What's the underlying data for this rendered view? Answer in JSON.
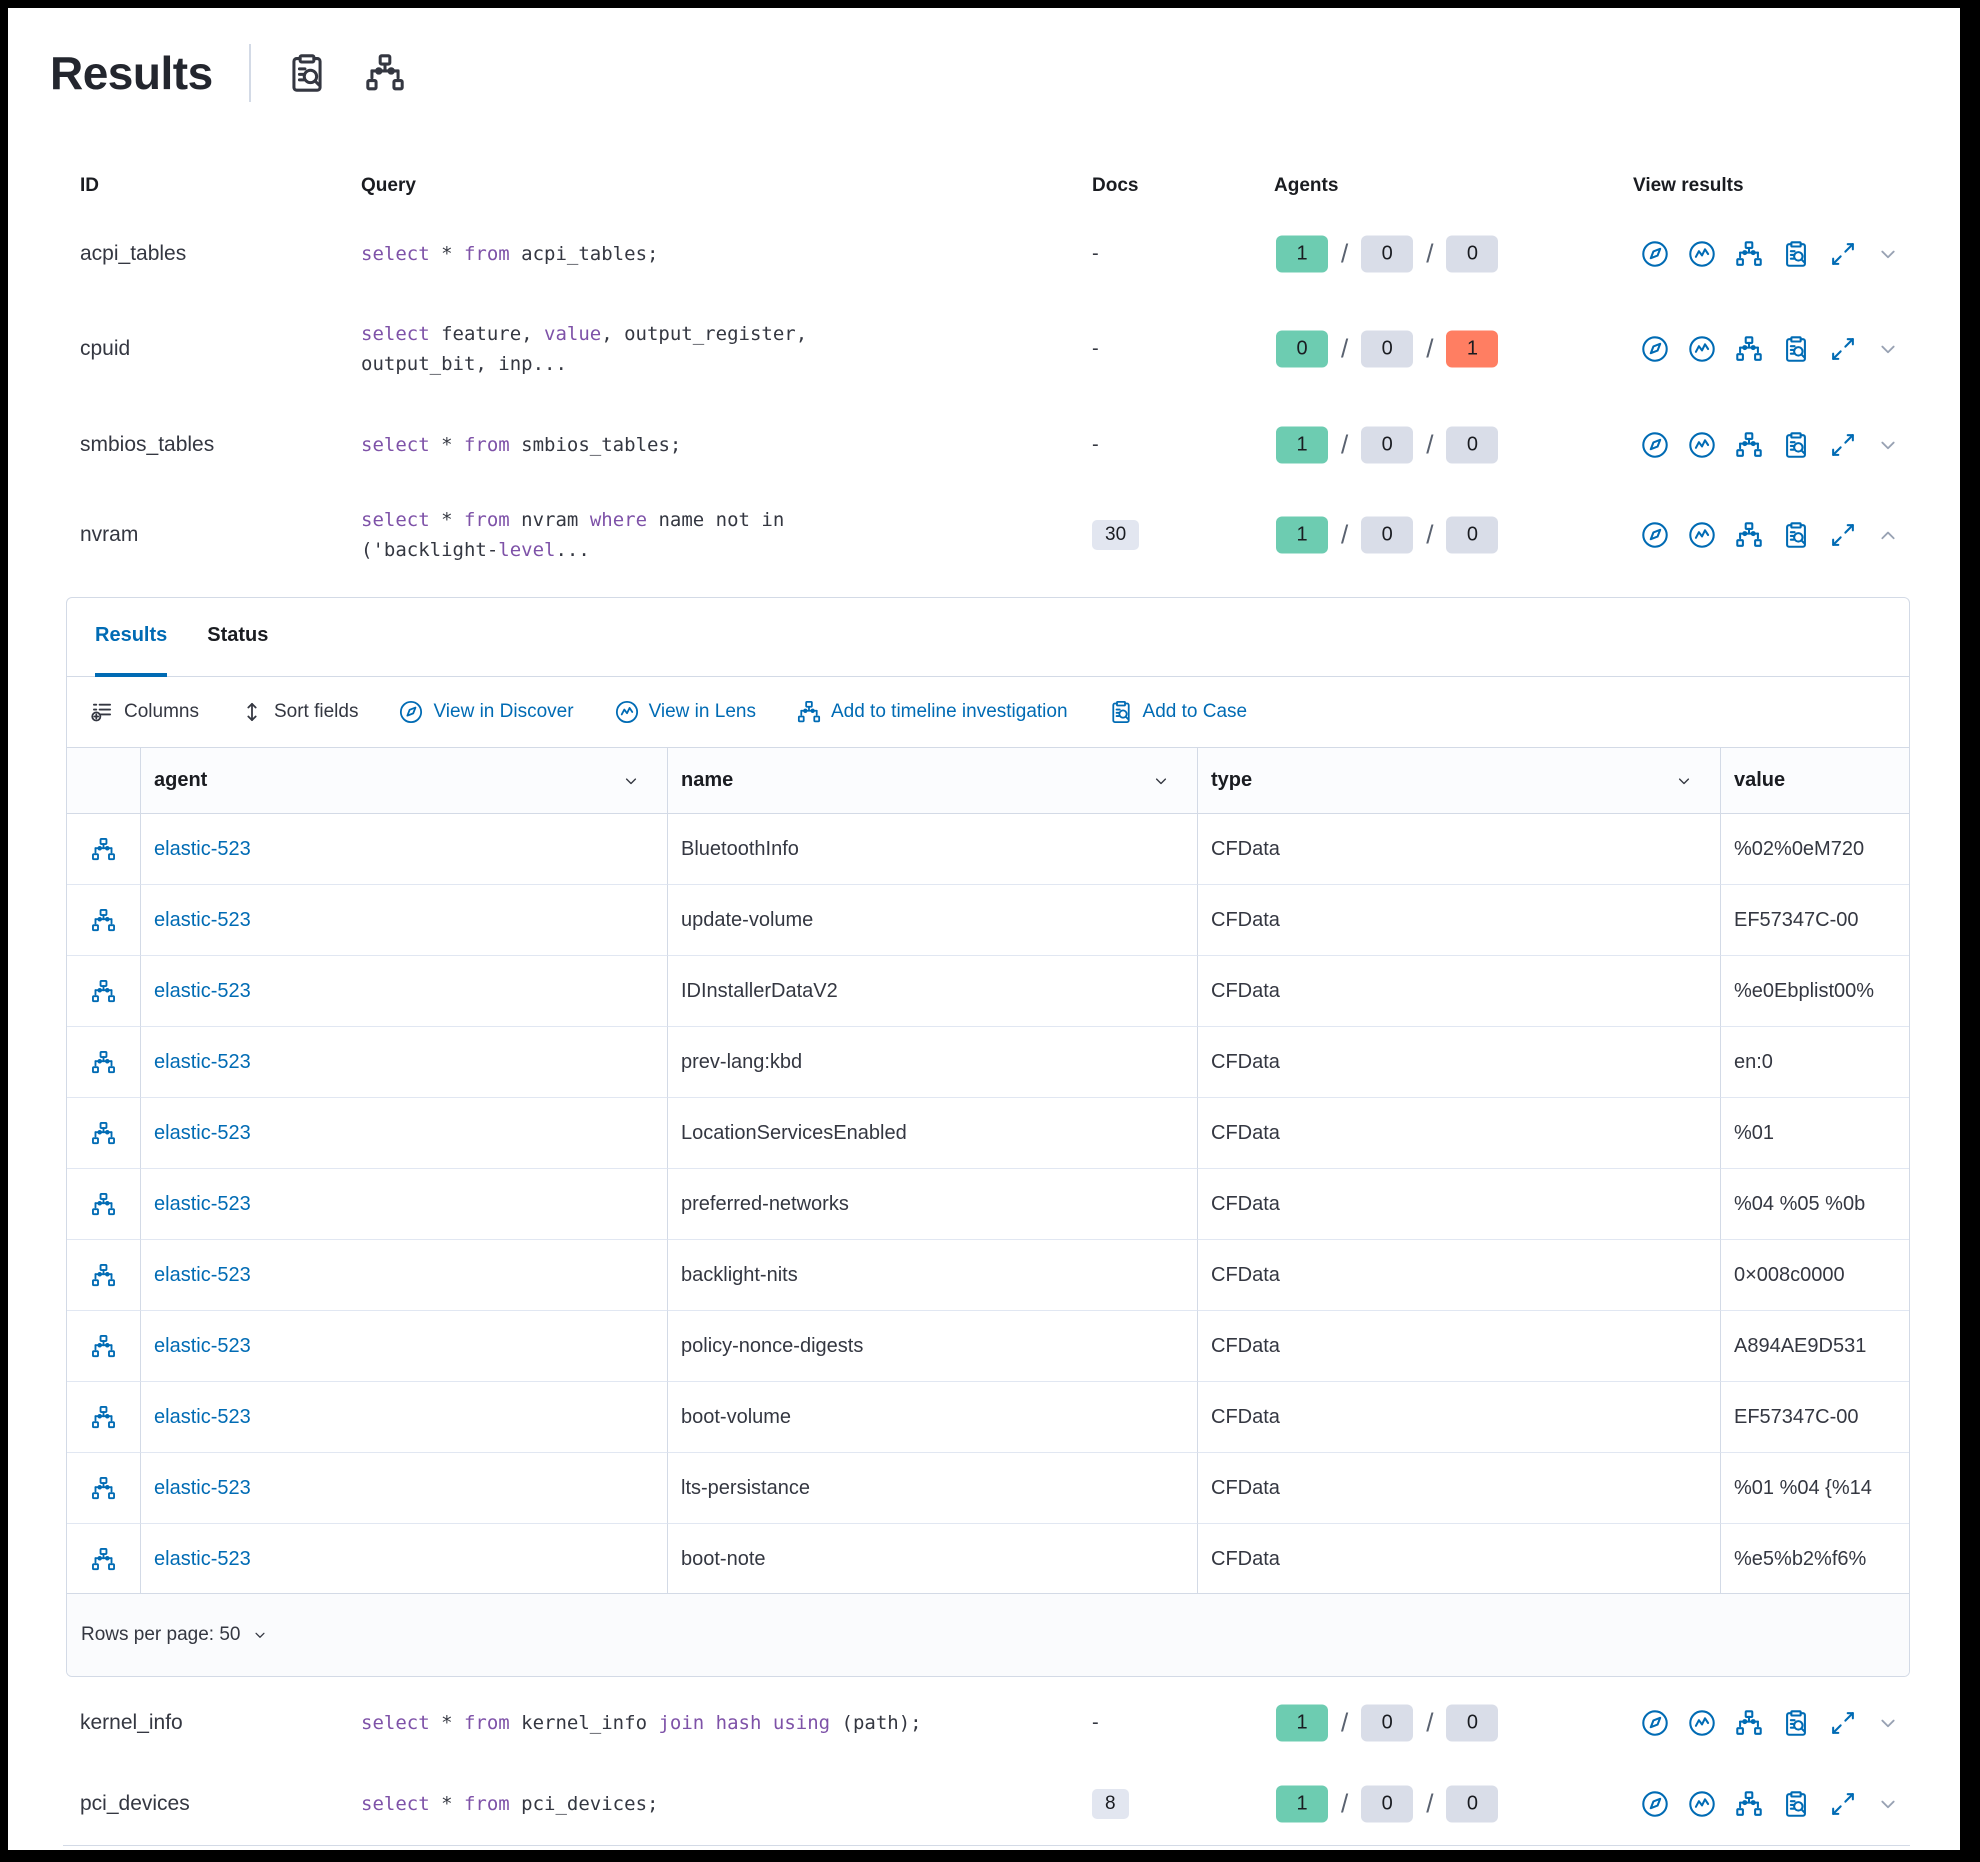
{
  "title": {
    "text": "Results"
  },
  "colors": {
    "accent_blue": "#006BB4",
    "success_badge": "#6DCCB1",
    "default_badge": "#D9DDE8",
    "danger_badge": "#FF7E62",
    "sql_keyword": "#7E52A8",
    "border": "#D3DAE6",
    "text": "#343741"
  },
  "columns": [
    "ID",
    "Query",
    "Docs",
    "Agents",
    "View results"
  ],
  "view_results_icons": [
    "discover",
    "lens",
    "timeline",
    "case",
    "expand"
  ],
  "rows": [
    {
      "id": "acpi_tables",
      "query": [
        [
          "select",
          "k"
        ],
        [
          " * ",
          "p"
        ],
        [
          "from",
          "k"
        ],
        [
          " acpi_tables;",
          "p"
        ]
      ],
      "docs": {
        "text": "-",
        "badge": false
      },
      "agents": [
        {
          "value": "1",
          "status": "success"
        },
        {
          "value": "0",
          "status": "default"
        },
        {
          "value": "0",
          "status": "default"
        }
      ],
      "expanded": false
    },
    {
      "id": "cpuid",
      "query": [
        [
          "select",
          "k"
        ],
        [
          " feature, ",
          "p"
        ],
        [
          "value",
          "k"
        ],
        [
          ", output_register,",
          "p"
        ],
        [
          "",
          "br"
        ],
        [
          "output_bit, inp...",
          "p"
        ]
      ],
      "docs": {
        "text": "-",
        "badge": false
      },
      "agents": [
        {
          "value": "0",
          "status": "success"
        },
        {
          "value": "0",
          "status": "default"
        },
        {
          "value": "1",
          "status": "danger"
        }
      ],
      "expanded": false
    },
    {
      "id": "smbios_tables",
      "query": [
        [
          "select",
          "k"
        ],
        [
          " * ",
          "p"
        ],
        [
          "from",
          "k"
        ],
        [
          " smbios_tables;",
          "p"
        ]
      ],
      "docs": {
        "text": "-",
        "badge": false
      },
      "agents": [
        {
          "value": "1",
          "status": "success"
        },
        {
          "value": "0",
          "status": "default"
        },
        {
          "value": "0",
          "status": "default"
        }
      ],
      "expanded": false
    },
    {
      "id": "nvram",
      "query": [
        [
          "select",
          "k"
        ],
        [
          " * ",
          "p"
        ],
        [
          "from",
          "k"
        ],
        [
          " nvram ",
          "p"
        ],
        [
          "where",
          "k"
        ],
        [
          " name not in",
          "p"
        ],
        [
          "",
          "br"
        ],
        [
          "('backlight-",
          "p"
        ],
        [
          "level",
          "k"
        ],
        [
          "...",
          "p"
        ]
      ],
      "docs": {
        "text": "30",
        "badge": true
      },
      "agents": [
        {
          "value": "1",
          "status": "success"
        },
        {
          "value": "0",
          "status": "default"
        },
        {
          "value": "0",
          "status": "default"
        }
      ],
      "expanded": true
    },
    {
      "id": "kernel_info",
      "query": [
        [
          "select",
          "k"
        ],
        [
          " * ",
          "p"
        ],
        [
          "from",
          "k"
        ],
        [
          " kernel_info ",
          "p"
        ],
        [
          "join",
          "k"
        ],
        [
          " ",
          "p"
        ],
        [
          "hash",
          "k"
        ],
        [
          " ",
          "p"
        ],
        [
          "using",
          "k"
        ],
        [
          " (path);",
          "p"
        ]
      ],
      "docs": {
        "text": "-",
        "badge": false
      },
      "agents": [
        {
          "value": "1",
          "status": "success"
        },
        {
          "value": "0",
          "status": "default"
        },
        {
          "value": "0",
          "status": "default"
        }
      ],
      "expanded": false
    },
    {
      "id": "pci_devices",
      "query": [
        [
          "select",
          "k"
        ],
        [
          " * ",
          "p"
        ],
        [
          "from",
          "k"
        ],
        [
          " pci_devices;",
          "p"
        ]
      ],
      "docs": {
        "text": "8",
        "badge": true
      },
      "agents": [
        {
          "value": "1",
          "status": "success"
        },
        {
          "value": "0",
          "status": "default"
        },
        {
          "value": "0",
          "status": "default"
        }
      ],
      "expanded": false
    }
  ],
  "panel": {
    "tabs": [
      {
        "label": "Results",
        "active": true
      },
      {
        "label": "Status",
        "active": false
      }
    ],
    "toolbar": [
      {
        "icon": "columns",
        "label": "Columns",
        "variant": "text"
      },
      {
        "icon": "sort",
        "label": "Sort fields",
        "variant": "text"
      },
      {
        "icon": "discover",
        "label": "View in Discover",
        "variant": "primary"
      },
      {
        "icon": "lens",
        "label": "View in Lens",
        "variant": "primary"
      },
      {
        "icon": "timeline",
        "label": "Add to timeline investigation",
        "variant": "primary"
      },
      {
        "icon": "case",
        "label": "Add to Case",
        "variant": "primary"
      }
    ],
    "grid": {
      "columns": [
        {
          "label": "agent",
          "sortable": true
        },
        {
          "label": "name",
          "sortable": true
        },
        {
          "label": "type",
          "sortable": true
        },
        {
          "label": "value",
          "sortable": false
        }
      ],
      "rows": [
        {
          "agent": "elastic-523",
          "name": "BluetoothInfo",
          "type": "CFData",
          "value": "%02%0eM720"
        },
        {
          "agent": "elastic-523",
          "name": "update-volume",
          "type": "CFData",
          "value": "EF57347C-00"
        },
        {
          "agent": "elastic-523",
          "name": "IDInstallerDataV2",
          "type": "CFData",
          "value": "%e0Ebplist00%"
        },
        {
          "agent": "elastic-523",
          "name": "prev-lang:kbd",
          "type": "CFData",
          "value": "en:0"
        },
        {
          "agent": "elastic-523",
          "name": "LocationServicesEnabled",
          "type": "CFData",
          "value": "%01"
        },
        {
          "agent": "elastic-523",
          "name": "preferred-networks",
          "type": "CFData",
          "value": "%04 %05 %0b"
        },
        {
          "agent": "elastic-523",
          "name": "backlight-nits",
          "type": "CFData",
          "value": "0×008c0000"
        },
        {
          "agent": "elastic-523",
          "name": "policy-nonce-digests",
          "type": "CFData",
          "value": "A894AE9D531"
        },
        {
          "agent": "elastic-523",
          "name": "boot-volume",
          "type": "CFData",
          "value": "EF57347C-00"
        },
        {
          "agent": "elastic-523",
          "name": "lts-persistance",
          "type": "CFData",
          "value": "%01 %04 {%14"
        },
        {
          "agent": "elastic-523",
          "name": "boot-note",
          "type": "CFData",
          "value": "%e5%b2%f6%"
        }
      ]
    },
    "footer": {
      "rows_per_page_label": "Rows per page: 50"
    }
  }
}
